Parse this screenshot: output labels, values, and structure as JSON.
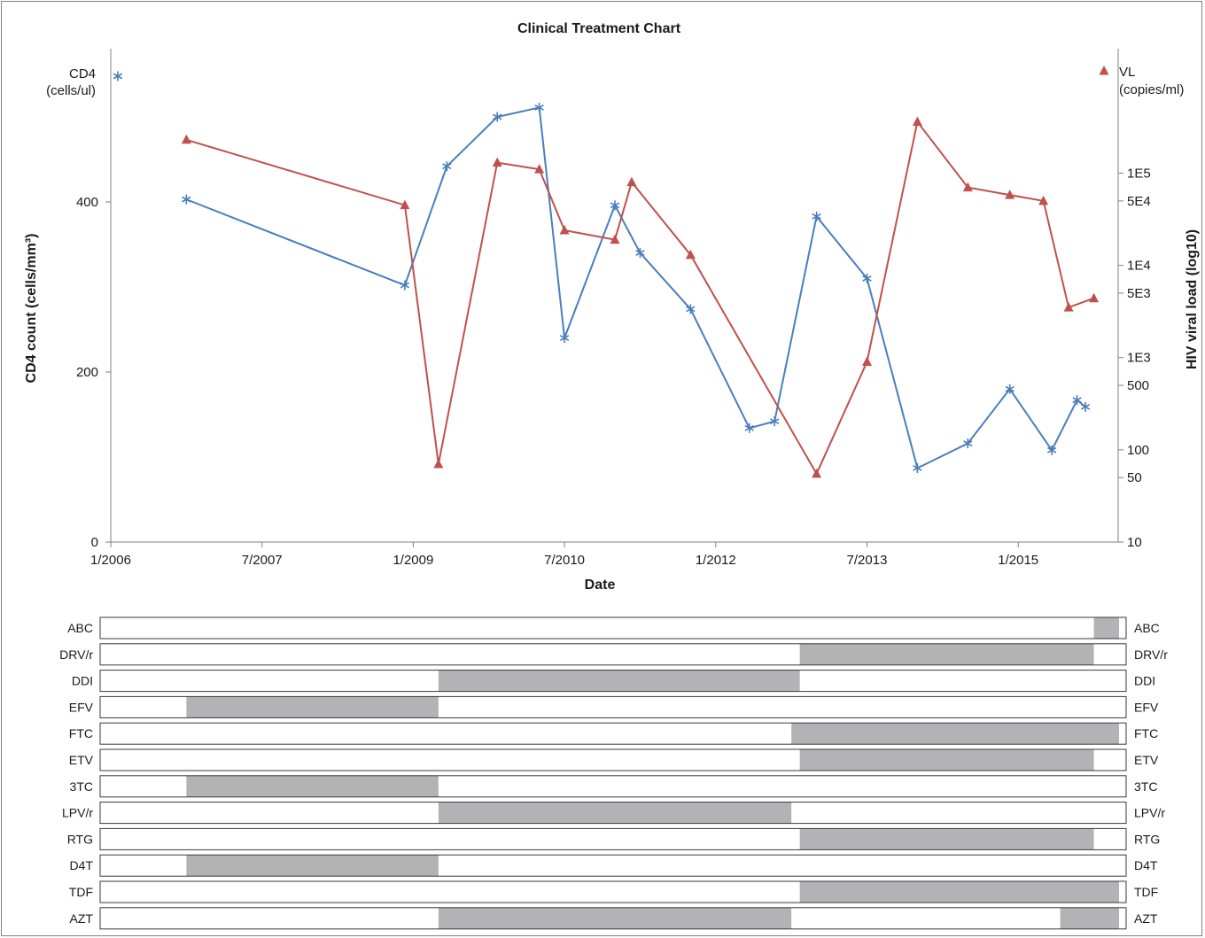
{
  "chart_data": {
    "type": "line",
    "title": "Clinical Treatment Chart",
    "xlabel": "Date",
    "ylabel": "CD4 count (cells/mm³)",
    "y2label": "HIV viral load (log10)",
    "x_ticks": [
      "1/2006",
      "7/2007",
      "1/2009",
      "7/2010",
      "1/2012",
      "7/2013",
      "1/2015"
    ],
    "y_ticks": [
      "0",
      "200",
      "400"
    ],
    "ylim": [
      0,
      575
    ],
    "y2_scale": "log",
    "y2lim": [
      10,
      2000000
    ],
    "y2_ticks": [
      {
        "value": 10,
        "label": "10"
      },
      {
        "value": 50,
        "label": "50"
      },
      {
        "value": 100,
        "label": "100"
      },
      {
        "value": 500,
        "label": "500"
      },
      {
        "value": 1000,
        "label": "1E3"
      },
      {
        "value": 5000,
        "label": "5E3"
      },
      {
        "value": 10000,
        "label": "1E4"
      },
      {
        "value": 50000,
        "label": "5E4"
      },
      {
        "value": 100000,
        "label": "1E5"
      }
    ],
    "legend": [
      {
        "line1": "CD4",
        "line2": "(cells/ul)",
        "color": "#4a7ebb",
        "marker": "asterisk",
        "position": "top-left"
      },
      {
        "line1": "VL",
        "line2": "(copies/ml)",
        "color": "#c0504d",
        "marker": "triangle",
        "position": "top-right"
      }
    ],
    "series": [
      {
        "id": "cd4",
        "axis": "left",
        "color": "#4a7ebb",
        "marker": "asterisk",
        "points": [
          {
            "x": "2006-10",
            "y": 403
          },
          {
            "x": "2008-12",
            "y": 302
          },
          {
            "x": "2009-05",
            "y": 442
          },
          {
            "x": "2009-11",
            "y": 500
          },
          {
            "x": "2010-04",
            "y": 511
          },
          {
            "x": "2010-07",
            "y": 240
          },
          {
            "x": "2011-01",
            "y": 396
          },
          {
            "x": "2011-04",
            "y": 340
          },
          {
            "x": "2011-10",
            "y": 274
          },
          {
            "x": "2012-05",
            "y": 134
          },
          {
            "x": "2012-08",
            "y": 142
          },
          {
            "x": "2013-01",
            "y": 383
          },
          {
            "x": "2013-07",
            "y": 310
          },
          {
            "x": "2014-01",
            "y": 87
          },
          {
            "x": "2014-07",
            "y": 116
          },
          {
            "x": "2014-12",
            "y": 180
          },
          {
            "x": "2015-05",
            "y": 108
          },
          {
            "x": "2015-08",
            "y": 167
          },
          {
            "x": "2015-09",
            "y": 159
          }
        ]
      },
      {
        "id": "vl",
        "axis": "right",
        "color": "#c0504d",
        "marker": "triangle",
        "points": [
          {
            "x": "2006-10",
            "y": 230000
          },
          {
            "x": "2008-12",
            "y": 45000
          },
          {
            "x": "2009-04",
            "y": 70
          },
          {
            "x": "2009-11",
            "y": 130000
          },
          {
            "x": "2010-04",
            "y": 110000
          },
          {
            "x": "2010-07",
            "y": 24000
          },
          {
            "x": "2011-01",
            "y": 19000
          },
          {
            "x": "2011-03",
            "y": 80000
          },
          {
            "x": "2011-10",
            "y": 13000
          },
          {
            "x": "2013-01",
            "y": 55
          },
          {
            "x": "2013-07",
            "y": 900
          },
          {
            "x": "2014-01",
            "y": 360000
          },
          {
            "x": "2014-07",
            "y": 70000
          },
          {
            "x": "2014-12",
            "y": 58000
          },
          {
            "x": "2015-04",
            "y": 50000
          },
          {
            "x": "2015-07",
            "y": 3500
          },
          {
            "x": "2015-10",
            "y": 4400
          }
        ]
      }
    ],
    "regimen": [
      {
        "drug": "ABC",
        "periods": [
          [
            "2015-10",
            "2016-01"
          ]
        ]
      },
      {
        "drug": "DRV/r",
        "periods": [
          [
            "2012-11",
            "2015-10"
          ]
        ]
      },
      {
        "drug": "DDI",
        "periods": [
          [
            "2009-04",
            "2012-11"
          ]
        ]
      },
      {
        "drug": "EFV",
        "periods": [
          [
            "2006-10",
            "2009-04"
          ]
        ]
      },
      {
        "drug": "FTC",
        "periods": [
          [
            "2012-10",
            "2016-01"
          ]
        ]
      },
      {
        "drug": "ETV",
        "periods": [
          [
            "2012-11",
            "2015-10"
          ]
        ]
      },
      {
        "drug": "3TC",
        "periods": [
          [
            "2006-10",
            "2009-04"
          ]
        ]
      },
      {
        "drug": "LPV/r",
        "periods": [
          [
            "2009-04",
            "2012-10"
          ]
        ]
      },
      {
        "drug": "RTG",
        "periods": [
          [
            "2012-11",
            "2015-10"
          ]
        ]
      },
      {
        "drug": "D4T",
        "periods": [
          [
            "2006-10",
            "2009-04"
          ]
        ]
      },
      {
        "drug": "TDF",
        "periods": [
          [
            "2012-11",
            "2016-01"
          ]
        ]
      },
      {
        "drug": "AZT",
        "periods": [
          [
            "2009-04",
            "2012-10"
          ],
          [
            "2015-06",
            "2016-01"
          ]
        ]
      }
    ],
    "regimen_fill": "#b3b3b5"
  }
}
